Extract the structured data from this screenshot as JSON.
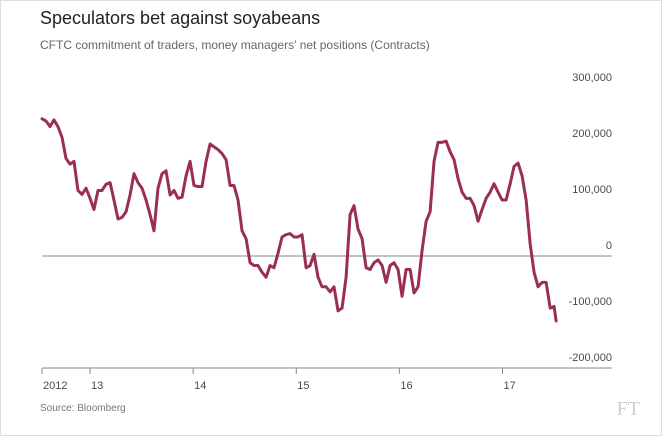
{
  "chart_data": {
    "type": "line",
    "title": "Speculators bet against soyabeans",
    "subtitle": "CFTC commitment of traders, money managers' net positions (Contracts)",
    "source": "Source: Bloomberg",
    "logo": "FT",
    "x": [
      2012.534,
      2012.573,
      2012.612,
      2012.65,
      2012.689,
      2012.728,
      2012.767,
      2012.806,
      2012.844,
      2012.883,
      2012.922,
      2012.961,
      2013.0,
      2013.038,
      2013.077,
      2013.116,
      2013.155,
      2013.194,
      2013.232,
      2013.271,
      2013.31,
      2013.349,
      2013.388,
      2013.426,
      2013.465,
      2013.504,
      2013.543,
      2013.582,
      2013.62,
      2013.659,
      2013.698,
      2013.737,
      2013.776,
      2013.814,
      2013.853,
      2013.892,
      2013.931,
      2013.97,
      2014.008,
      2014.047,
      2014.086,
      2014.125,
      2014.164,
      2014.202,
      2014.241,
      2014.28,
      2014.319,
      2014.358,
      2014.396,
      2014.435,
      2014.474,
      2014.513,
      2014.552,
      2014.59,
      2014.629,
      2014.668,
      2014.707,
      2014.746,
      2014.784,
      2014.823,
      2014.862,
      2014.901,
      2014.94,
      2014.978,
      2015.017,
      2015.056,
      2015.095,
      2015.134,
      2015.172,
      2015.211,
      2015.25,
      2015.289,
      2015.328,
      2015.366,
      2015.405,
      2015.444,
      2015.483,
      2015.522,
      2015.56,
      2015.599,
      2015.638,
      2015.677,
      2015.716,
      2015.754,
      2015.793,
      2015.832,
      2015.871,
      2015.91,
      2015.948,
      2015.987,
      2016.026,
      2016.065,
      2016.104,
      2016.142,
      2016.181,
      2016.22,
      2016.259,
      2016.298,
      2016.336,
      2016.375,
      2016.414,
      2016.453,
      2016.492,
      2016.53,
      2016.569,
      2016.608,
      2016.647,
      2016.686,
      2016.724,
      2016.763,
      2016.802,
      2016.841,
      2016.88,
      2016.918,
      2016.957,
      2016.996,
      2017.035,
      2017.074,
      2017.112,
      2017.151,
      2017.19,
      2017.229,
      2017.268,
      2017.306,
      2017.345,
      2017.384,
      2017.423,
      2017.462,
      2017.5,
      2017.52
    ],
    "series": [
      {
        "name": "Net positions",
        "color": "#9b2f52",
        "values": [
          245000,
          241000,
          231000,
          243000,
          231000,
          212000,
          174000,
          164000,
          169000,
          117000,
          110000,
          121000,
          103000,
          83000,
          117000,
          117000,
          128000,
          131000,
          100000,
          66000,
          69000,
          79000,
          109000,
          147000,
          131000,
          121000,
          100000,
          74000,
          45000,
          121000,
          147000,
          152000,
          109000,
          117000,
          103000,
          105000,
          143000,
          169000,
          126000,
          124000,
          124000,
          169000,
          200000,
          195000,
          190000,
          183000,
          172000,
          126000,
          126000,
          100000,
          45000,
          31000,
          -12000,
          -17000,
          -17000,
          -29000,
          -38000,
          -17000,
          -21000,
          5000,
          34000,
          38000,
          40000,
          34000,
          34000,
          38000,
          -21000,
          -17000,
          3000,
          -38000,
          -55000,
          -55000,
          -64000,
          -55000,
          -98000,
          -93000,
          -38000,
          74000,
          90000,
          48000,
          31000,
          -21000,
          -24000,
          -12000,
          -7000,
          -17000,
          -47000,
          -17000,
          -12000,
          -24000,
          -72000,
          -24000,
          -24000,
          -66000,
          -55000,
          10000,
          62000,
          79000,
          169000,
          203000,
          203000,
          205000,
          186000,
          172000,
          138000,
          114000,
          103000,
          103000,
          90000,
          62000,
          83000,
          103000,
          114000,
          129000,
          114000,
          100000,
          100000,
          129000,
          160000,
          166000,
          143000,
          100000,
          22000,
          -29000,
          -55000,
          -47000,
          -47000,
          -93000,
          -90000,
          -116000
        ]
      }
    ],
    "xlim": [
      2012.534,
      2017.8
    ],
    "xticks": [
      {
        "value": 2012.534,
        "label": "2012"
      },
      {
        "value": 2013,
        "label": "13"
      },
      {
        "value": 2014,
        "label": "14"
      },
      {
        "value": 2015,
        "label": "15"
      },
      {
        "value": 2016,
        "label": "16"
      },
      {
        "value": 2017,
        "label": "17"
      }
    ],
    "ylim": [
      -200000,
      300000
    ],
    "yticks": [
      {
        "value": 300000,
        "label": "300,000"
      },
      {
        "value": 200000,
        "label": "200,000"
      },
      {
        "value": 100000,
        "label": "100,000"
      },
      0,
      {
        "value": -100000,
        "label": "-100,000"
      },
      {
        "value": -200000,
        "label": "-200,000"
      }
    ]
  }
}
